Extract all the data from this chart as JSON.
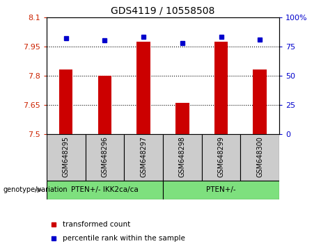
{
  "title": "GDS4119 / 10558508",
  "categories": [
    "GSM648295",
    "GSM648296",
    "GSM648297",
    "GSM648298",
    "GSM648299",
    "GSM648300"
  ],
  "red_values": [
    7.83,
    7.8,
    7.975,
    7.66,
    7.975,
    7.83
  ],
  "blue_values": [
    82,
    80,
    83,
    78,
    83,
    81
  ],
  "ylim_left": [
    7.5,
    8.1
  ],
  "ylim_right": [
    0,
    100
  ],
  "yticks_left": [
    7.5,
    7.65,
    7.8,
    7.95,
    8.1
  ],
  "ytick_labels_left": [
    "7.5",
    "7.65",
    "7.8",
    "7.95",
    "8.1"
  ],
  "yticks_right": [
    0,
    25,
    50,
    75,
    100
  ],
  "ytick_labels_right": [
    "0",
    "25",
    "50",
    "75",
    "100%"
  ],
  "group1_label": "PTEN+/- IKK2ca/ca",
  "group2_label": "PTEN+/-",
  "group1_indices": [
    0,
    1,
    2
  ],
  "group2_indices": [
    3,
    4,
    5
  ],
  "group_color": "#7EE07E",
  "bar_color": "#CC0000",
  "dot_color": "#0000CC",
  "bar_width": 0.35,
  "base_value": 7.5,
  "legend_red": "transformed count",
  "legend_blue": "percentile rank within the sample",
  "genotype_label": "genotype/variation",
  "grid_color": "black",
  "grid_lines": [
    7.65,
    7.8,
    7.95
  ],
  "sample_box_color": "#cccccc",
  "left_color": "#CC2200",
  "right_color": "#0000CC"
}
